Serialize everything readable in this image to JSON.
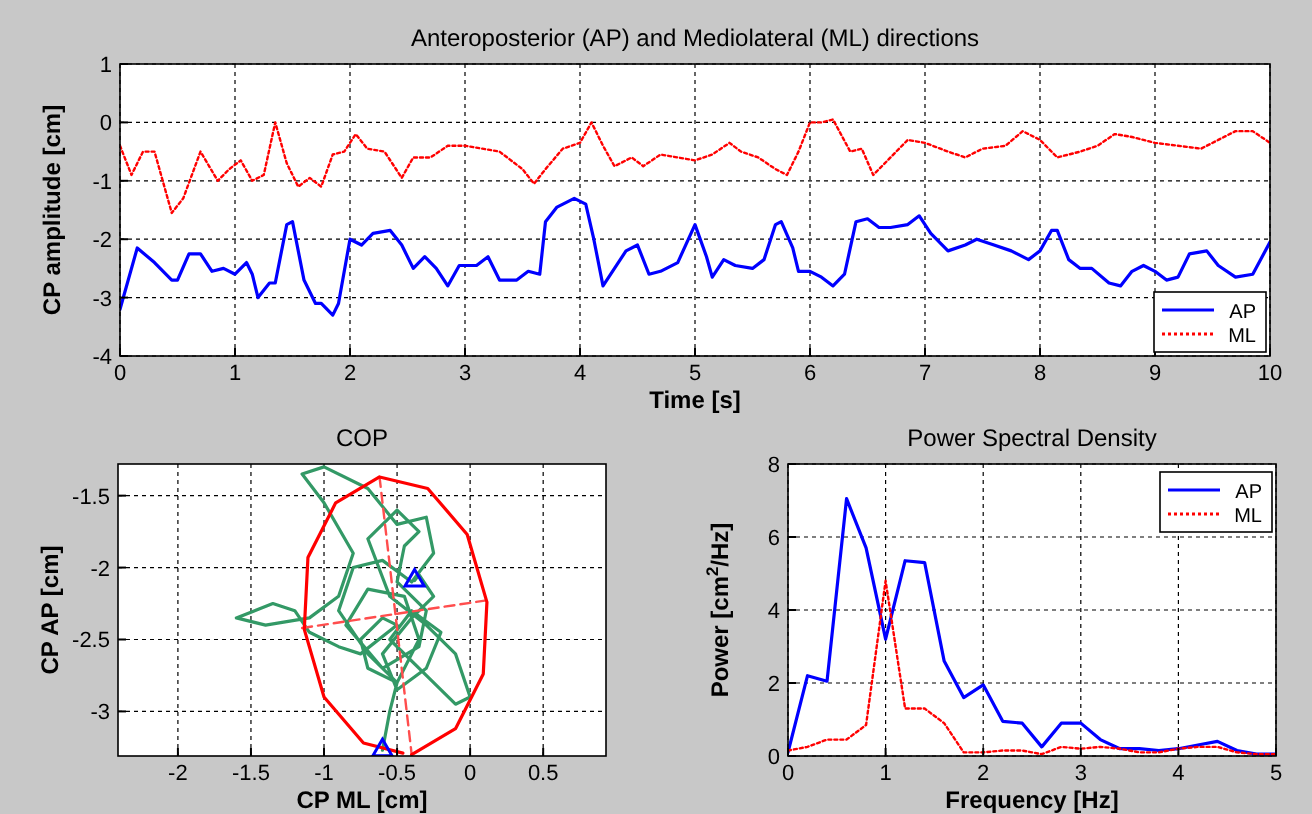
{
  "chart_data": [
    {
      "type": "line",
      "title": "Anteroposterior (AP) and Mediolateral (ML) directions",
      "xlabel": "Time [s]",
      "ylabel": "CP amplitude [cm]",
      "xlim": [
        0,
        10
      ],
      "ylim": [
        -4,
        1
      ],
      "xticks": [
        0,
        1,
        2,
        3,
        4,
        5,
        6,
        7,
        8,
        9,
        10
      ],
      "yticks": [
        -4,
        -3,
        -2,
        -1,
        0,
        1
      ],
      "grid": true,
      "legend": "bottom right",
      "series": [
        {
          "name": "AP",
          "color": "#0000ff",
          "line_style": "solid",
          "x": [
            0,
            0.15,
            0.3,
            0.45,
            0.5,
            0.6,
            0.7,
            0.8,
            0.9,
            1.0,
            1.1,
            1.15,
            1.2,
            1.3,
            1.35,
            1.45,
            1.5,
            1.6,
            1.7,
            1.75,
            1.85,
            1.9,
            2.0,
            2.1,
            2.2,
            2.35,
            2.45,
            2.55,
            2.65,
            2.75,
            2.85,
            2.95,
            3.1,
            3.2,
            3.3,
            3.45,
            3.55,
            3.65,
            3.7,
            3.8,
            3.95,
            4.05,
            4.12,
            4.2,
            4.3,
            4.4,
            4.5,
            4.6,
            4.7,
            4.85,
            5.0,
            5.1,
            5.15,
            5.25,
            5.35,
            5.5,
            5.6,
            5.7,
            5.75,
            5.85,
            5.9,
            6.0,
            6.1,
            6.2,
            6.3,
            6.4,
            6.5,
            6.6,
            6.7,
            6.85,
            6.95,
            7.05,
            7.2,
            7.35,
            7.45,
            7.6,
            7.75,
            7.9,
            8.0,
            8.1,
            8.15,
            8.25,
            8.35,
            8.45,
            8.6,
            8.7,
            8.8,
            8.9,
            9.0,
            9.1,
            9.2,
            9.3,
            9.45,
            9.55,
            9.7,
            9.85,
            10.0
          ],
          "values": [
            -3.2,
            -2.15,
            -2.4,
            -2.7,
            -2.7,
            -2.25,
            -2.25,
            -2.55,
            -2.5,
            -2.6,
            -2.4,
            -2.6,
            -3.0,
            -2.75,
            -2.75,
            -1.75,
            -1.7,
            -2.7,
            -3.1,
            -3.1,
            -3.3,
            -3.1,
            -2.0,
            -2.1,
            -1.9,
            -1.85,
            -2.1,
            -2.5,
            -2.3,
            -2.5,
            -2.8,
            -2.45,
            -2.45,
            -2.3,
            -2.7,
            -2.7,
            -2.55,
            -2.6,
            -1.7,
            -1.45,
            -1.3,
            -1.4,
            -2.0,
            -2.8,
            -2.5,
            -2.2,
            -2.1,
            -2.6,
            -2.55,
            -2.4,
            -1.75,
            -2.3,
            -2.65,
            -2.35,
            -2.45,
            -2.5,
            -2.35,
            -1.75,
            -1.7,
            -2.15,
            -2.55,
            -2.55,
            -2.65,
            -2.8,
            -2.6,
            -1.7,
            -1.65,
            -1.8,
            -1.8,
            -1.75,
            -1.6,
            -1.9,
            -2.2,
            -2.1,
            -2.0,
            -2.1,
            -2.2,
            -2.35,
            -2.2,
            -1.85,
            -1.85,
            -2.35,
            -2.5,
            -2.5,
            -2.75,
            -2.8,
            -2.55,
            -2.45,
            -2.55,
            -2.7,
            -2.65,
            -2.25,
            -2.2,
            -2.45,
            -2.65,
            -2.6,
            -2.05
          ]
        },
        {
          "name": "ML",
          "color": "#ff0000",
          "line_style": "dotted",
          "x": [
            0,
            0.1,
            0.2,
            0.3,
            0.45,
            0.55,
            0.7,
            0.85,
            0.95,
            1.05,
            1.15,
            1.25,
            1.35,
            1.45,
            1.55,
            1.65,
            1.75,
            1.85,
            1.95,
            2.05,
            2.15,
            2.3,
            2.45,
            2.55,
            2.7,
            2.85,
            3.0,
            3.15,
            3.3,
            3.5,
            3.6,
            3.7,
            3.85,
            4.0,
            4.1,
            4.2,
            4.3,
            4.45,
            4.55,
            4.7,
            4.85,
            5.0,
            5.15,
            5.3,
            5.4,
            5.55,
            5.7,
            5.8,
            5.9,
            6.0,
            6.1,
            6.2,
            6.35,
            6.45,
            6.55,
            6.7,
            6.85,
            7.0,
            7.2,
            7.35,
            7.5,
            7.7,
            7.85,
            8.0,
            8.15,
            8.35,
            8.5,
            8.65,
            8.8,
            9.0,
            9.2,
            9.4,
            9.55,
            9.7,
            9.85,
            10.0
          ],
          "values": [
            -0.4,
            -0.9,
            -0.5,
            -0.5,
            -1.55,
            -1.3,
            -0.5,
            -1.0,
            -0.8,
            -0.65,
            -1.0,
            -0.9,
            0,
            -0.7,
            -1.1,
            -0.95,
            -1.1,
            -0.55,
            -0.5,
            -0.2,
            -0.45,
            -0.5,
            -0.95,
            -0.6,
            -0.6,
            -0.4,
            -0.4,
            -0.45,
            -0.5,
            -0.8,
            -1.05,
            -0.8,
            -0.45,
            -0.35,
            0,
            -0.4,
            -0.75,
            -0.6,
            -0.75,
            -0.55,
            -0.6,
            -0.65,
            -0.55,
            -0.35,
            -0.5,
            -0.6,
            -0.8,
            -0.9,
            -0.5,
            0,
            0,
            0.05,
            -0.5,
            -0.45,
            -0.9,
            -0.6,
            -0.3,
            -0.35,
            -0.5,
            -0.6,
            -0.45,
            -0.4,
            -0.15,
            -0.3,
            -0.6,
            -0.5,
            -0.4,
            -0.2,
            -0.25,
            -0.35,
            -0.4,
            -0.45,
            -0.3,
            -0.15,
            -0.15,
            -0.35
          ]
        }
      ]
    },
    {
      "type": "line",
      "title": "COP",
      "xlabel": "CP ML [cm]",
      "ylabel": "CP AP [cm]",
      "xlim": [
        -2.41,
        0.93
      ],
      "ylim": [
        -3.31,
        -1.28
      ],
      "xticks": [
        -2,
        -1.5,
        -1,
        -0.5,
        0,
        0.5
      ],
      "yticks": [
        -3,
        -2.5,
        -2,
        -1.5
      ],
      "grid": true,
      "series": [
        {
          "color": "#339966",
          "line_style": "solid",
          "x": [
            -0.6,
            -0.55,
            -0.5,
            -0.7,
            -0.75,
            -0.6,
            -0.5,
            -0.75,
            -0.9,
            -1.1,
            -1.2,
            -1.35,
            -1.6,
            -1.4,
            -1.1,
            -0.9,
            -0.8,
            -1.0,
            -1.15,
            -1.0,
            -0.7,
            -0.5,
            -0.3,
            -0.25,
            -0.4,
            -0.6,
            -0.8,
            -0.9,
            -0.7,
            -0.5,
            -0.35,
            -0.45,
            -0.7,
            -0.85,
            -0.6,
            -0.35,
            -0.3,
            -0.5,
            -0.45,
            -0.35,
            -0.5,
            -0.7,
            -0.55,
            -0.3,
            -0.1,
            0.0,
            -0.1,
            -0.3,
            -0.55,
            -0.4,
            -0.2,
            -0.3,
            -0.5,
            -0.6,
            -0.4,
            -0.25,
            -0.35,
            -0.38
          ],
          "values": [
            -3.27,
            -3.0,
            -2.8,
            -2.7,
            -2.5,
            -2.35,
            -2.4,
            -2.6,
            -2.55,
            -2.45,
            -2.3,
            -2.25,
            -2.35,
            -2.4,
            -2.35,
            -2.2,
            -1.9,
            -1.55,
            -1.35,
            -1.3,
            -1.45,
            -1.7,
            -1.65,
            -1.9,
            -2.1,
            -1.95,
            -2.0,
            -2.3,
            -2.6,
            -2.8,
            -2.5,
            -2.2,
            -2.15,
            -2.4,
            -2.7,
            -2.55,
            -2.3,
            -2.1,
            -1.85,
            -1.75,
            -1.6,
            -1.8,
            -2.2,
            -2.4,
            -2.6,
            -2.9,
            -2.95,
            -2.75,
            -2.5,
            -2.3,
            -2.45,
            -2.7,
            -2.85,
            -2.6,
            -2.35,
            -2.2,
            -2.05,
            -2.09
          ]
        },
        {
          "color": "#ff4d4d",
          "line_style": "dashed",
          "x": [
            -0.62,
            -0.4
          ],
          "values": [
            -1.37,
            -3.3
          ]
        },
        {
          "color": "#ff4d4d",
          "line_style": "dashed",
          "x": [
            -1.15,
            0.1
          ],
          "values": [
            -2.42,
            -2.23
          ]
        },
        {
          "color": "#ff0000",
          "line_style": "solid",
          "x": [
            -0.4,
            -0.1,
            0.09,
            0.115,
            -0.02,
            -0.29,
            -0.62,
            -0.92,
            -1.11,
            -1.135,
            -1.0,
            -0.73,
            -0.46
          ],
          "values": [
            -3.3,
            -3.12,
            -2.74,
            -2.24,
            -1.77,
            -1.45,
            -1.37,
            -1.55,
            -1.93,
            -2.43,
            -2.9,
            -3.22,
            -3.29
          ]
        },
        {
          "type": "scatter",
          "color": "#0000ff",
          "marker": "triangle",
          "x": [
            -0.38,
            -0.6
          ],
          "values": [
            -2.09,
            -3.27
          ]
        }
      ]
    },
    {
      "type": "line",
      "title": "Power Spectral Density",
      "xlabel": "Frequency [Hz]",
      "ylabel": "Power [cm$^{2}$/Hz]",
      "xlim": [
        0,
        5
      ],
      "ylim": [
        0,
        8
      ],
      "xticks": [
        0,
        1,
        2,
        3,
        4,
        5
      ],
      "yticks": [
        0,
        2,
        4,
        6,
        8
      ],
      "grid": true,
      "legend": "top right",
      "x": [
        0,
        0.2,
        0.4,
        0.6,
        0.8,
        1.0,
        1.2,
        1.4,
        1.6,
        1.8,
        2.0,
        2.2,
        2.4,
        2.6,
        2.8,
        3.0,
        3.2,
        3.4,
        3.6,
        3.8,
        4.0,
        4.2,
        4.4,
        4.6,
        4.8,
        5.0
      ],
      "series": [
        {
          "name": "AP",
          "color": "#0000ff",
          "line_style": "solid",
          "values": [
            0.1,
            2.2,
            2.05,
            7.05,
            5.7,
            3.2,
            5.35,
            5.3,
            2.6,
            1.6,
            1.95,
            0.95,
            0.9,
            0.25,
            0.9,
            0.9,
            0.45,
            0.2,
            0.2,
            0.15,
            0.2,
            0.3,
            0.4,
            0.15,
            0.05,
            0.05
          ]
        },
        {
          "name": "ML",
          "color": "#ff0000",
          "line_style": "dotted",
          "values": [
            0.15,
            0.25,
            0.45,
            0.45,
            0.85,
            4.8,
            1.3,
            1.3,
            0.9,
            0.1,
            0.1,
            0.15,
            0.15,
            0.05,
            0.25,
            0.2,
            0.25,
            0.2,
            0.1,
            0.1,
            0.2,
            0.25,
            0.25,
            0.1,
            0.05,
            0.05
          ]
        }
      ]
    }
  ]
}
